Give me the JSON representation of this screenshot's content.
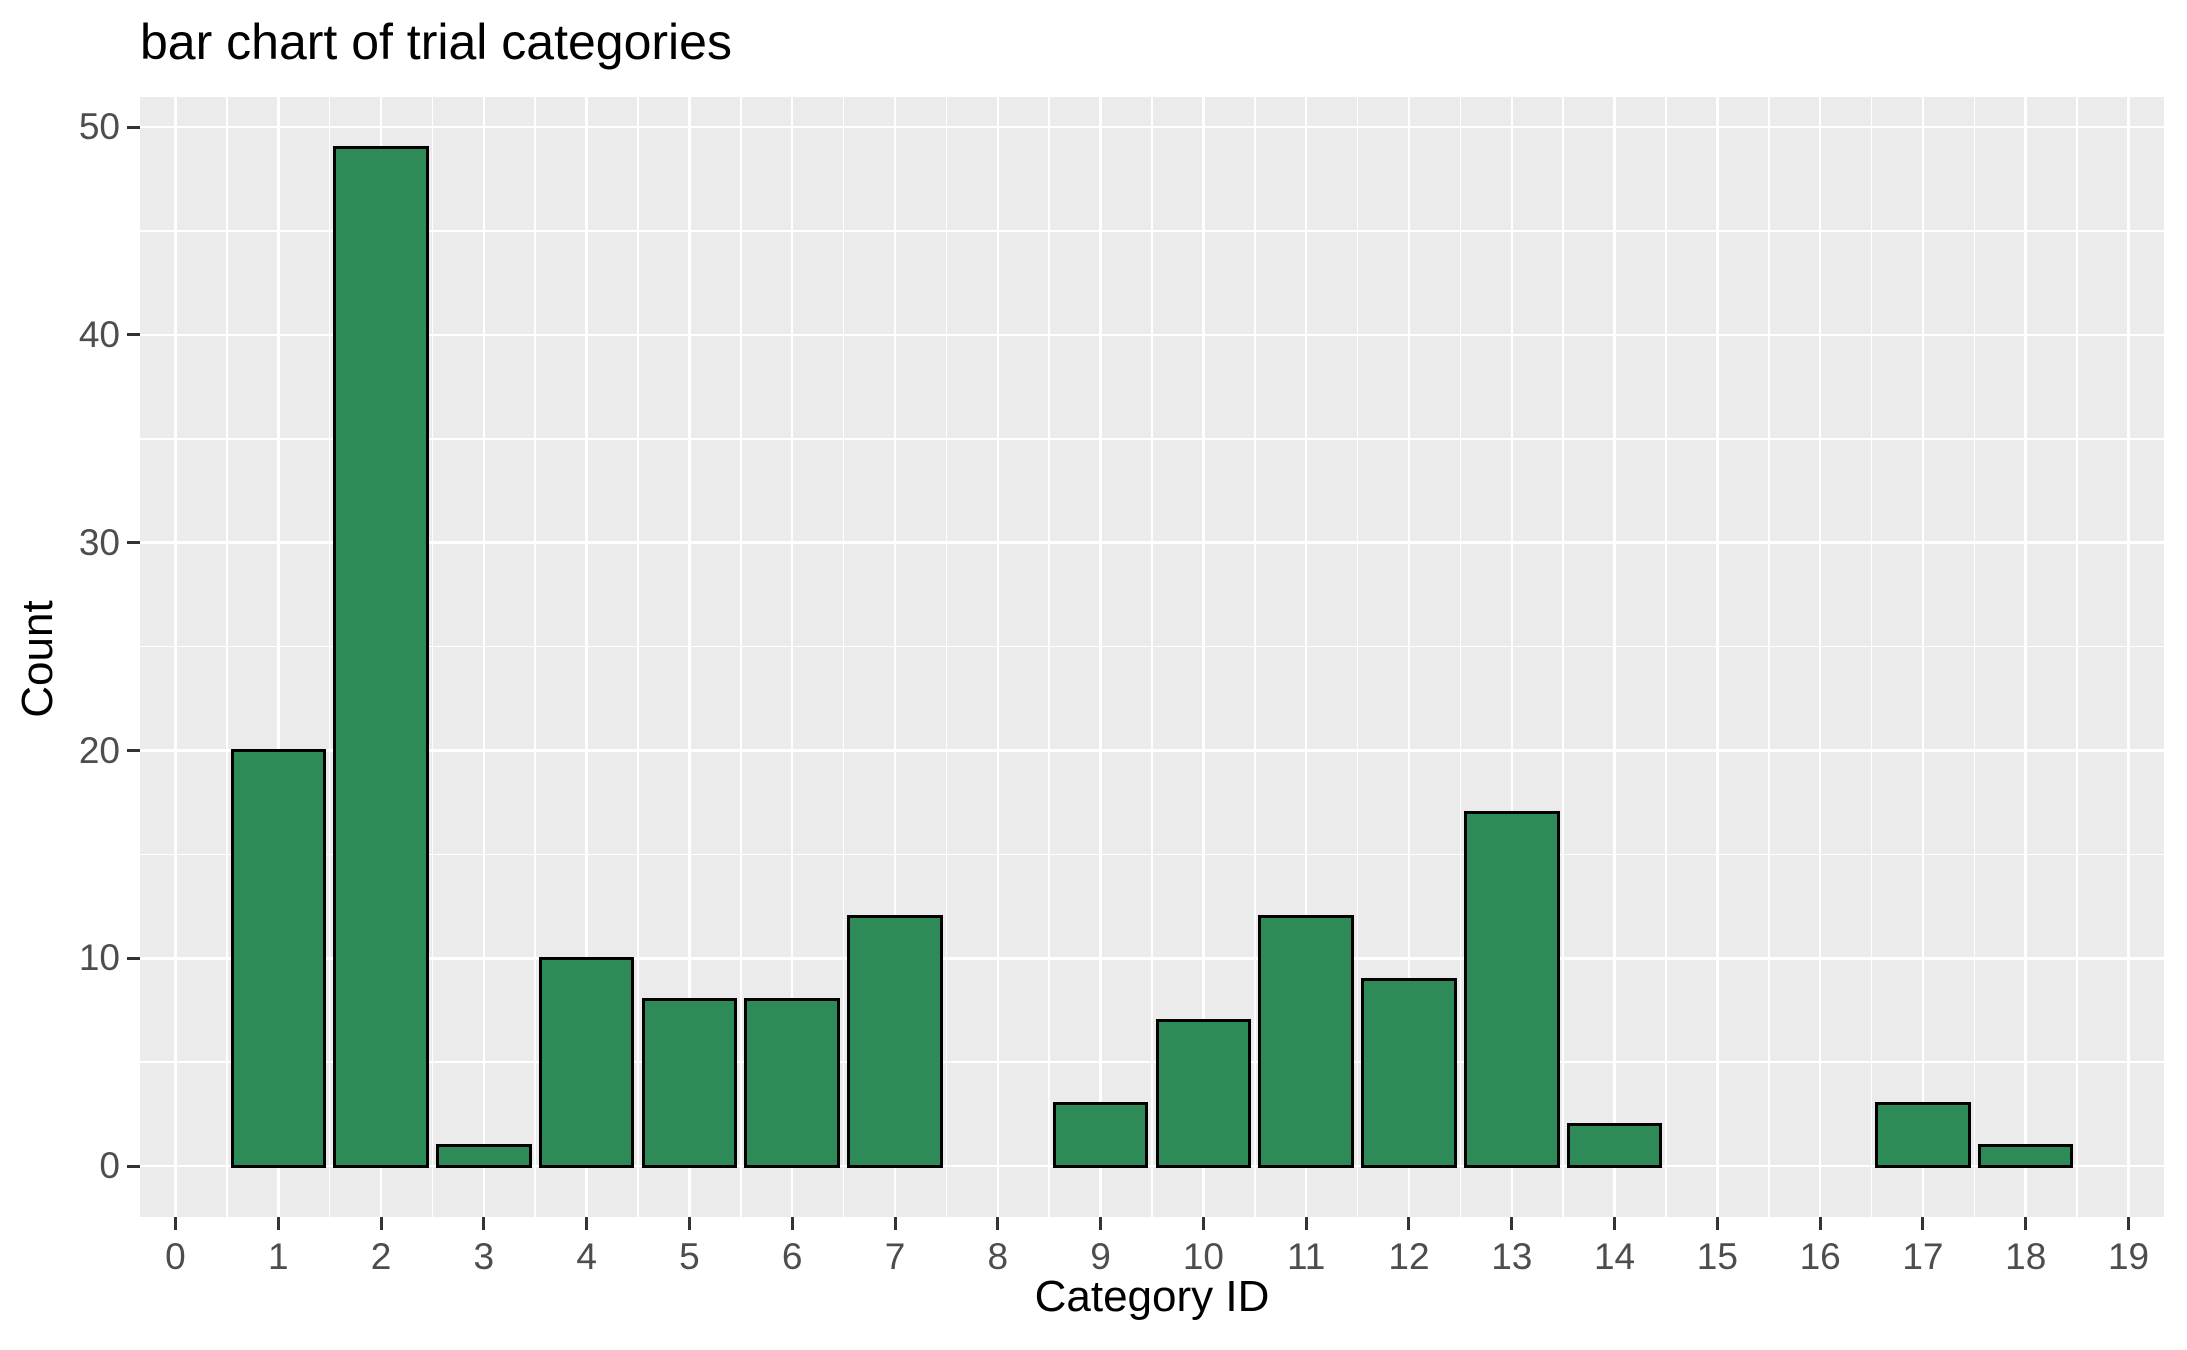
{
  "chart_data": {
    "type": "bar",
    "title": "bar chart of trial categories",
    "xlabel": "Category ID",
    "ylabel": "Count",
    "categories": [
      0,
      1,
      2,
      3,
      4,
      5,
      6,
      7,
      8,
      9,
      10,
      11,
      12,
      13,
      14,
      15,
      16,
      17,
      18,
      19
    ],
    "values": [
      0,
      20,
      49,
      1,
      10,
      8,
      8,
      12,
      0,
      3,
      7,
      12,
      9,
      17,
      2,
      0,
      0,
      3,
      1,
      0
    ],
    "x_ticks": [
      0,
      1,
      2,
      3,
      4,
      5,
      6,
      7,
      8,
      9,
      10,
      11,
      12,
      13,
      14,
      15,
      16,
      17,
      18,
      19
    ],
    "y_ticks": [
      0,
      10,
      20,
      30,
      40,
      50
    ],
    "y_minor_ticks": [
      5,
      15,
      25,
      35,
      45
    ],
    "x_minor_positions": [
      0.5,
      1.5,
      2.5,
      3.5,
      4.5,
      5.5,
      6.5,
      7.5,
      8.5,
      9.5,
      10.5,
      11.5,
      12.5,
      13.5,
      14.5,
      15.5,
      16.5,
      17.5,
      18.5
    ],
    "xlim": [
      -0.345,
      19.345
    ],
    "ylim": [
      -2.45,
      51.45
    ],
    "bar_width": 0.9,
    "grid": true,
    "legend_position": "none",
    "colors": {
      "bar_fill": "#2E8B57",
      "bar_stroke": "#000000",
      "panel_background": "#EBEBEB",
      "gridline": "#FFFFFF",
      "tick_label": "#4D4D4D",
      "tick_mark": "#333333",
      "title_text": "#000000",
      "axis_title_text": "#000000"
    }
  }
}
